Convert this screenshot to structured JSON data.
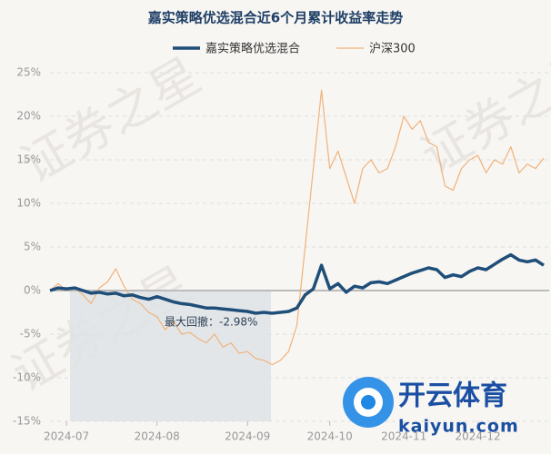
{
  "chart_data": {
    "type": "line",
    "title": "嘉实策略优选混合近6个月累计收益率走势",
    "categories": [
      null,
      null,
      "2024-07",
      null,
      null,
      null,
      null,
      null,
      null,
      null,
      null,
      null,
      null,
      "2024-08",
      null,
      null,
      null,
      null,
      null,
      null,
      null,
      null,
      null,
      null,
      "2024-09",
      null,
      null,
      null,
      null,
      null,
      null,
      null,
      null,
      null,
      "2024-10",
      null,
      null,
      null,
      null,
      null,
      null,
      null,
      null,
      "2024-11",
      null,
      null,
      null,
      null,
      null,
      null,
      null,
      null,
      "2024-12",
      null,
      null,
      null,
      null,
      null,
      null,
      null,
      null
    ],
    "series": [
      {
        "name": "嘉实策略优选混合",
        "color": "#1f4e79",
        "width": 3.5,
        "values": [
          0,
          0.3,
          0.2,
          0.3,
          0,
          -0.3,
          -0.2,
          -0.4,
          -0.3,
          -0.6,
          -0.5,
          -0.8,
          -1.0,
          -0.7,
          -1.0,
          -1.3,
          -1.5,
          -1.6,
          -1.8,
          -2.0,
          -2.0,
          -2.1,
          -2.2,
          -2.3,
          -2.4,
          -2.6,
          -2.5,
          -2.6,
          -2.5,
          -2.4,
          -2.0,
          -0.5,
          0.2,
          2.9,
          0.2,
          0.8,
          -0.2,
          0.5,
          0.3,
          0.9,
          1.0,
          0.8,
          1.2,
          1.6,
          2.0,
          2.3,
          2.6,
          2.4,
          1.5,
          1.8,
          1.6,
          2.2,
          2.6,
          2.4,
          3.0,
          3.6,
          4.1,
          3.5,
          3.3,
          3.5,
          2.9
        ]
      },
      {
        "name": "沪深300",
        "color": "#f0b27a",
        "width": 1.2,
        "values": [
          0,
          0.8,
          0,
          0.3,
          -0.5,
          -1.5,
          0.3,
          1.0,
          2.5,
          0.5,
          -1.0,
          -1.5,
          -2.5,
          -3,
          -4.5,
          -3.5,
          -5,
          -4.8,
          -5.5,
          -6,
          -5,
          -6.5,
          -6,
          -7.2,
          -7,
          -7.8,
          -8,
          -8.5,
          -8,
          -7,
          -4,
          5,
          14,
          23,
          14,
          16,
          13,
          10,
          14,
          15,
          13.5,
          14,
          16.5,
          20,
          18.5,
          19.5,
          17,
          16.5,
          12,
          11.5,
          14,
          15,
          15.5,
          13.5,
          15,
          14.5,
          16.5,
          13.5,
          14.5,
          14,
          15.2
        ]
      }
    ],
    "ylim": [
      -15,
      25
    ],
    "yticks": [
      {
        "value": -15,
        "label": "-15%"
      },
      {
        "value": -10,
        "label": "-10%"
      },
      {
        "value": -5,
        "label": "-5%"
      },
      {
        "value": 0,
        "label": "0%"
      },
      {
        "value": 5,
        "label": "5%"
      },
      {
        "value": 10,
        "label": "10%"
      },
      {
        "value": 15,
        "label": "15%"
      },
      {
        "value": 20,
        "label": "20%"
      },
      {
        "value": 25,
        "label": "25%"
      }
    ],
    "grid": true,
    "legend": "top",
    "annotation": "最大回撤：-2.98%",
    "watermark": "证券之星",
    "logo": {
      "name": "开云体育",
      "url": "kaiyun.com"
    }
  }
}
